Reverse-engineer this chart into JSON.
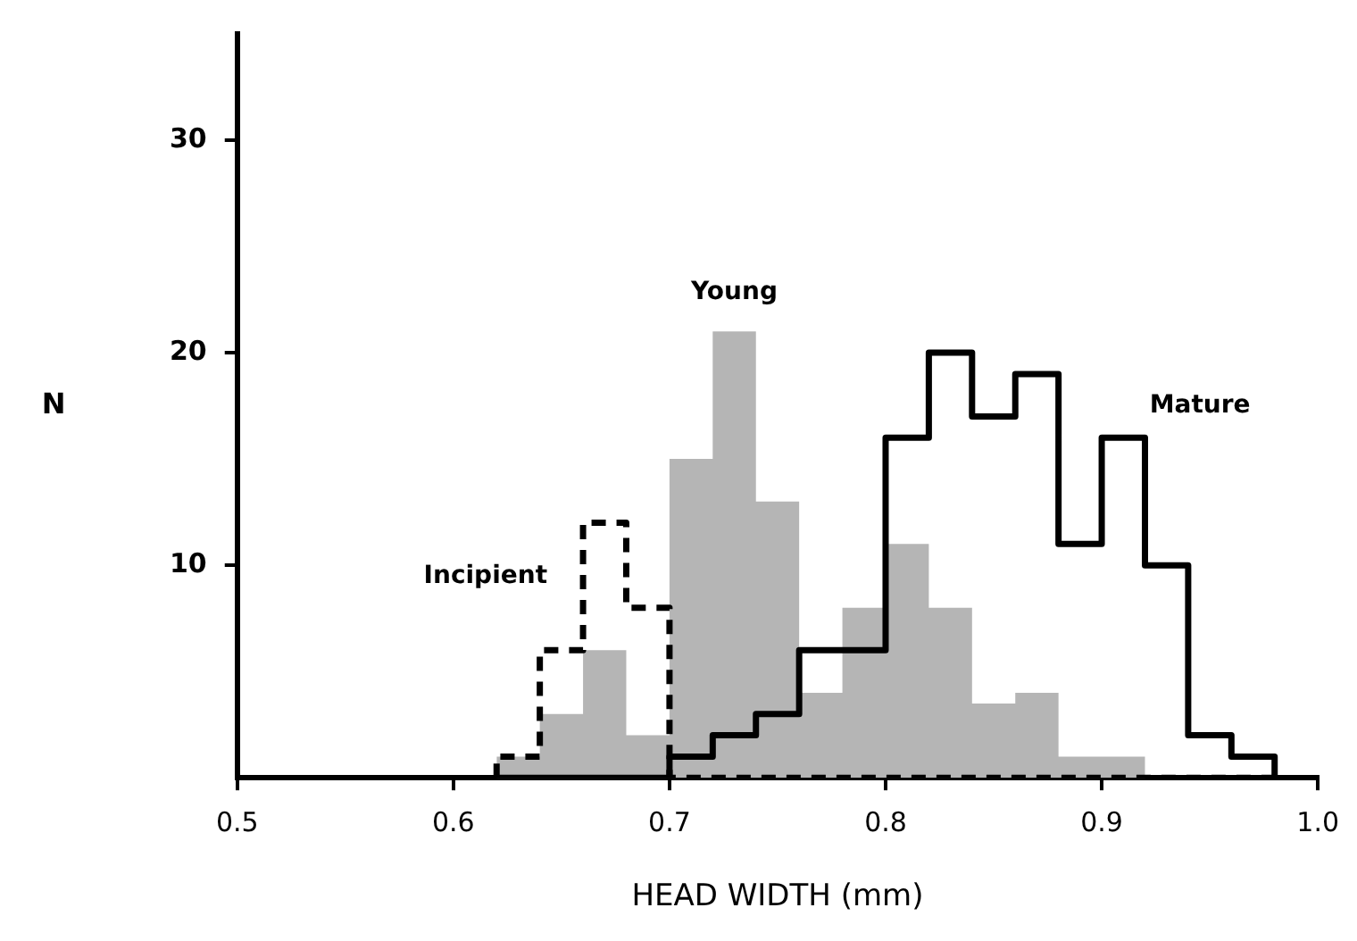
{
  "chart_data": {
    "type": "histogram",
    "xlabel": "HEAD WIDTH (mm)",
    "ylabel": "N",
    "bins": [
      0.62,
      0.64,
      0.66,
      0.68,
      0.7,
      0.72,
      0.74,
      0.76,
      0.78,
      0.8,
      0.82,
      0.84,
      0.86,
      0.88,
      0.9,
      0.92,
      0.94,
      0.96,
      0.98
    ],
    "series": [
      {
        "name": "Incipient",
        "color": "#000000",
        "line_style": "dashed",
        "values": [
          1,
          6,
          12,
          8,
          0,
          0,
          0,
          0,
          0,
          0,
          0,
          0,
          0,
          0,
          0,
          0,
          0,
          0
        ]
      },
      {
        "name": "Young",
        "color": "#b5b5b5",
        "values": [
          1,
          3,
          6,
          2,
          15,
          21,
          13,
          4,
          8,
          11,
          8,
          3.5,
          4,
          1,
          1,
          0,
          0,
          0
        ]
      },
      {
        "name": "Mature",
        "color": "#000000",
        "line_style": "solid",
        "values": [
          0,
          0,
          0,
          0,
          1,
          2,
          3,
          6,
          6,
          16,
          20,
          17,
          19,
          11,
          16,
          10,
          2,
          1
        ]
      }
    ],
    "xlim": [
      0.5,
      1.0
    ],
    "xticks": [
      0.5,
      0.6,
      0.7,
      0.8,
      0.9,
      {
        "value": 1.0,
        "label": "1.0"
      }
    ],
    "ylim": [
      0,
      35
    ],
    "yticks": [
      10,
      20,
      30
    ],
    "grid": false,
    "legend": false
  }
}
